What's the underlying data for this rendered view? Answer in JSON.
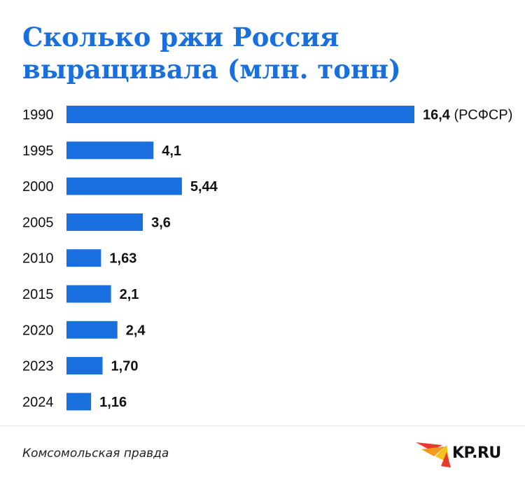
{
  "chart_data": {
    "type": "bar",
    "orientation": "horizontal",
    "title": "Сколько ржи Россия выращивала (млн. тонн)",
    "categories": [
      "1990",
      "1995",
      "2000",
      "2005",
      "2010",
      "2015",
      "2020",
      "2023",
      "2024"
    ],
    "values": [
      16.4,
      4.1,
      5.44,
      3.6,
      1.63,
      2.1,
      2.4,
      1.7,
      1.16
    ],
    "value_labels": [
      "16,4",
      "4,1",
      "5,44",
      "3,6",
      "1,63",
      "2,1",
      "2,4",
      "1,70",
      "1,16"
    ],
    "annotations": [
      {
        "category": "1990",
        "text": "(РСФСР)"
      }
    ],
    "bar_color": "#1a6fde",
    "grid": false
  },
  "footer": {
    "source": "Комсомольская правда",
    "logo_text": "KP.RU"
  }
}
